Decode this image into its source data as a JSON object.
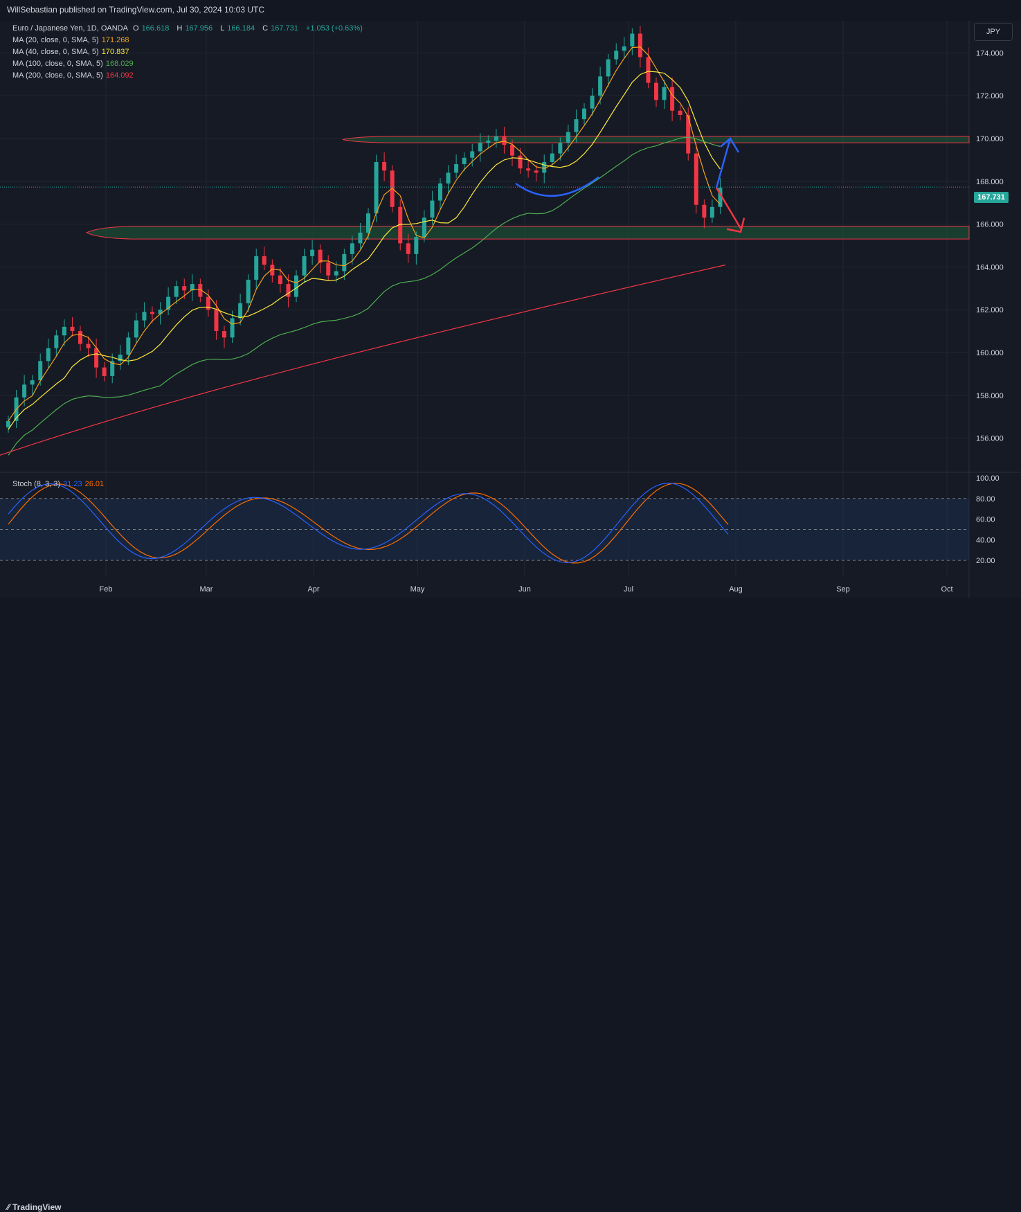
{
  "header": {
    "publisher_line": "WillSebastian published on TradingView.com, Jul 30, 2024 10:03 UTC",
    "currency_button": "JPY",
    "footer_brand": "TradingView"
  },
  "symbol_info": {
    "name": "Euro / Japanese Yen, 1D, OANDA",
    "open_label": "O",
    "open": "166.618",
    "high_label": "H",
    "high": "167.956",
    "low_label": "L",
    "low": "166.184",
    "close_label": "C",
    "close": "167.731",
    "change": "+1.053 (+0.63%)"
  },
  "indicators": [
    {
      "label": "MA (20, close, 0, SMA, 5)",
      "value": "171.268",
      "color": "#f7a21b"
    },
    {
      "label": "MA (40, close, 0, SMA, 5)",
      "value": "170.837",
      "color": "#ffeb3b"
    },
    {
      "label": "MA (100, close, 0, SMA, 5)",
      "value": "168.029",
      "color": "#4caf50"
    },
    {
      "label": "MA (200, close, 0, SMA, 5)",
      "value": "164.092",
      "color": "#f23645"
    }
  ],
  "stoch": {
    "label": "Stoch (8, 3, 3)",
    "k": "31.23",
    "d": "26.01",
    "k_color": "#2962ff",
    "d_color": "#ff6d00"
  },
  "last_price": "167.731",
  "colors": {
    "up": "#26a69a",
    "down": "#f23645",
    "zone_fill": "#1e5c3a",
    "zone_border": "#f23645",
    "arrow_up": "#2962ff",
    "arrow_down": "#f23645",
    "curve": "#2962ff",
    "band": "#1e3a5f"
  },
  "chart_data": [
    {
      "type": "candlestick",
      "title": "Euro / Japanese Yen, 1D, OANDA",
      "price_ticks": [
        "174.000",
        "172.000",
        "170.000",
        "168.000",
        "166.000",
        "164.000",
        "162.000",
        "160.000",
        "158.000",
        "156.000"
      ],
      "ylim": [
        154.4,
        175.5
      ],
      "time_ticks": [
        "Feb",
        "Mar",
        "Apr",
        "May",
        "Jun",
        "Jul",
        "Aug",
        "Sep",
        "Oct"
      ],
      "xlim_days": [
        0,
        280
      ],
      "month_positions_days": [
        29,
        58,
        89,
        119,
        150,
        180,
        211,
        242,
        272
      ],
      "ohlc_sample_closes": [
        156.8,
        157.9,
        158.5,
        158.7,
        159.6,
        160.2,
        160.8,
        161.2,
        161.0,
        160.4,
        160.2,
        159.3,
        158.9,
        159.6,
        159.9,
        160.7,
        161.5,
        161.9,
        161.8,
        162.0,
        162.6,
        163.1,
        162.9,
        163.2,
        162.6,
        162.0,
        161.0,
        160.7,
        161.6,
        162.3,
        163.4,
        164.5,
        164.1,
        163.6,
        163.2,
        162.6,
        163.6,
        164.5,
        164.8,
        164.2,
        163.6,
        163.8,
        164.6,
        165.1,
        165.6,
        166.5,
        168.9,
        168.5,
        166.8,
        165.1,
        164.6,
        165.4,
        166.3,
        167.1,
        167.9,
        168.4,
        168.8,
        169.1,
        169.4,
        169.8,
        169.9,
        170.1,
        169.7,
        169.2,
        168.6,
        168.5,
        168.4,
        168.9,
        169.3,
        169.8,
        170.3,
        170.9,
        171.4,
        172.0,
        172.9,
        173.7,
        174.1,
        174.3,
        174.9,
        173.8,
        172.6,
        171.8,
        172.4,
        171.3,
        171.1,
        169.3,
        166.9,
        166.3,
        166.8,
        167.7
      ],
      "bands": [
        {
          "name": "resistance",
          "from": 169.8,
          "to": 170.1
        },
        {
          "name": "support",
          "from": 165.3,
          "to": 165.9
        }
      ],
      "arrows": [
        {
          "direction": "up",
          "from_price": 167.7,
          "to_price": 170.0
        },
        {
          "direction": "down",
          "from_price": 167.7,
          "to_price": 165.8
        }
      ],
      "series": [
        {
          "name": "MA 20",
          "color": "#f7a21b",
          "last": 171.268
        },
        {
          "name": "MA 40",
          "color": "#ffeb3b",
          "last": 170.837
        },
        {
          "name": "MA 100",
          "color": "#4caf50",
          "last": 168.029
        },
        {
          "name": "MA 200",
          "color": "#f23645",
          "last": 164.092
        }
      ]
    },
    {
      "type": "line",
      "title": "Stoch (8, 3, 3)",
      "ticks": [
        "100.00",
        "80.00",
        "60.00",
        "40.00",
        "20.00"
      ],
      "ylim": [
        8,
        100
      ],
      "band": [
        20,
        80
      ],
      "series": [
        {
          "name": "%K",
          "color": "#2962ff",
          "last": 31.23
        },
        {
          "name": "%D",
          "color": "#ff6d00",
          "last": 26.01
        }
      ]
    }
  ]
}
